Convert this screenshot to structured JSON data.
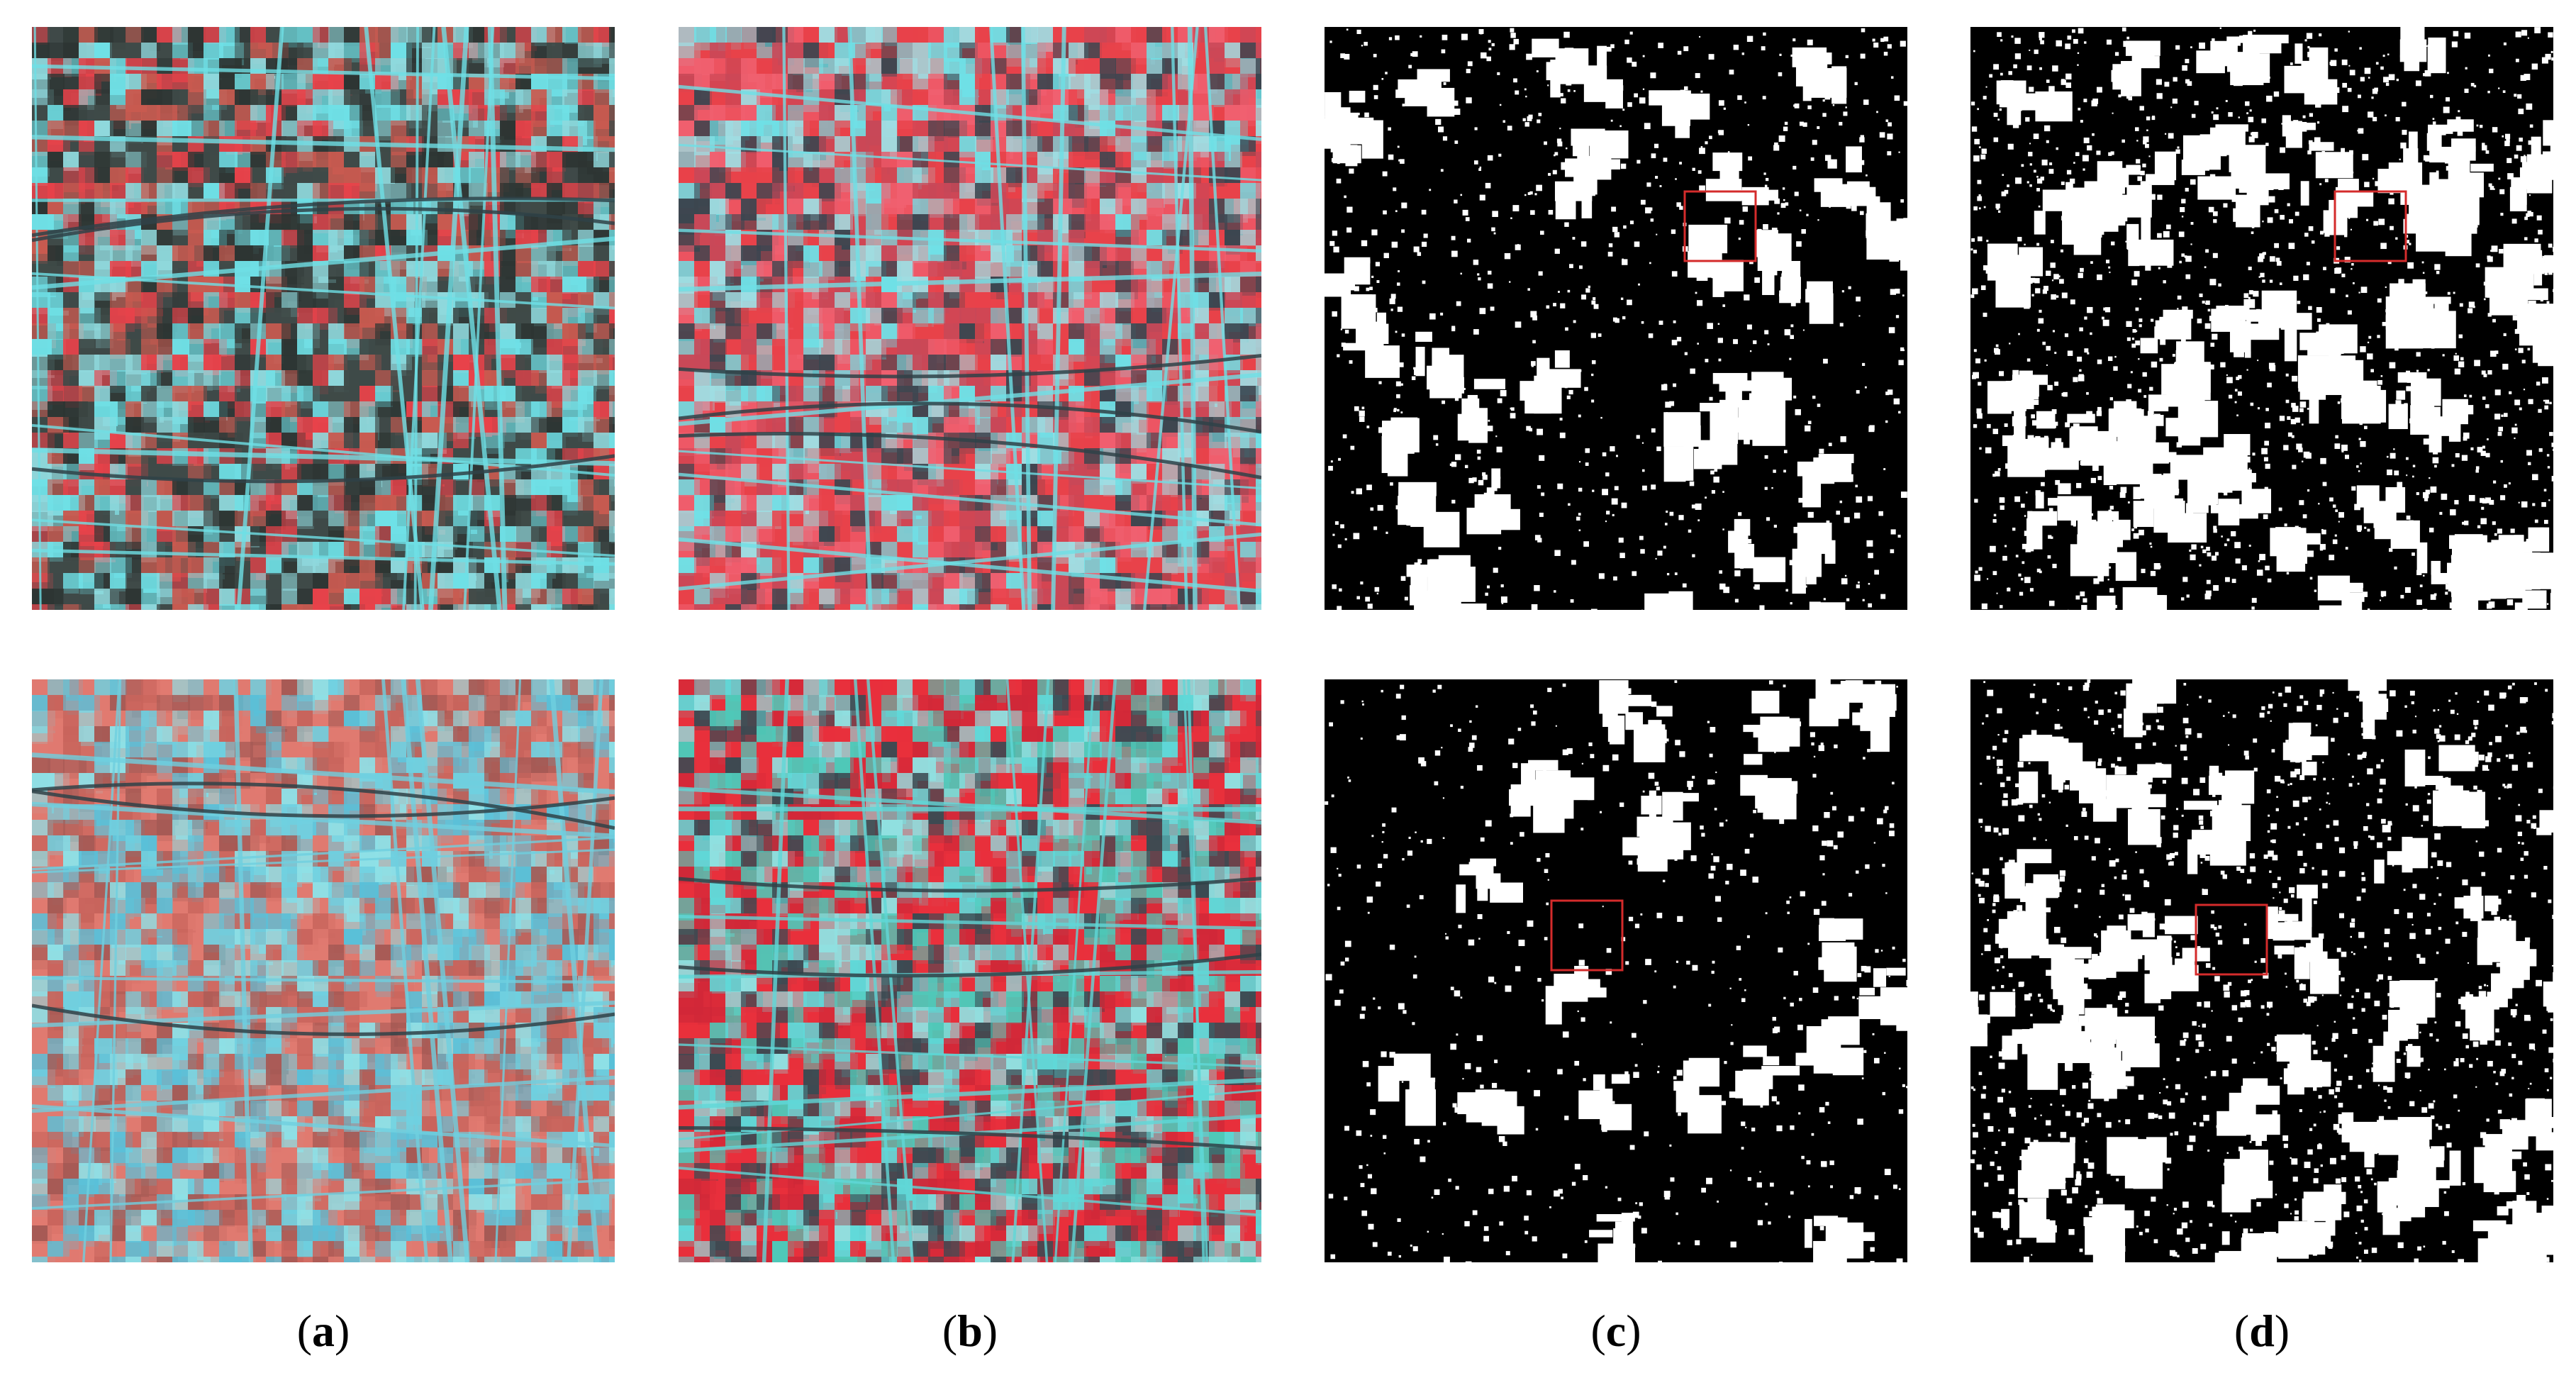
{
  "captions": [
    {
      "open": "(",
      "letter": "a",
      "close": ")"
    },
    {
      "open": "(",
      "letter": "b",
      "close": ")"
    },
    {
      "open": "(",
      "letter": "c",
      "close": ")"
    },
    {
      "open": "(",
      "letter": "d",
      "close": ")"
    }
  ],
  "colors": {
    "background": "#ffffff",
    "vegetation_red": "#e8424a",
    "urban_cyan": "#6fe0e6",
    "soil_dark": "#3f4a48",
    "change_white": "#ffffff",
    "nochange_black": "#000000",
    "highlight_box": "#d42b2b"
  },
  "panels": [
    {
      "name": "panel-a-top",
      "kind": "false-color-image",
      "palette": [
        "#3f4a48",
        "#6fe0e6",
        "#e8424a",
        "#c85a50",
        "#2d3533",
        "#8fd8dc"
      ]
    },
    {
      "name": "panel-b-top",
      "kind": "false-color-image",
      "palette": [
        "#e8424a",
        "#6fe0e6",
        "#c84858",
        "#9fdde2",
        "#3c4650",
        "#f06070"
      ]
    },
    {
      "name": "panel-c-top",
      "kind": "binary-change-map",
      "highlight": true
    },
    {
      "name": "panel-d-top",
      "kind": "binary-change-map",
      "highlight": true
    },
    {
      "name": "panel-a-bottom",
      "kind": "false-color-image",
      "palette": [
        "#e07a70",
        "#6fd0e0",
        "#c8645c",
        "#8ee0e6",
        "#a65a55",
        "#5ac0d8"
      ]
    },
    {
      "name": "panel-b-bottom",
      "kind": "false-color-image",
      "palette": [
        "#e8303c",
        "#60d8d8",
        "#3c4a52",
        "#90e0e0",
        "#d02838",
        "#4fc8b8"
      ]
    },
    {
      "name": "panel-c-bottom",
      "kind": "binary-change-map",
      "highlight": true
    },
    {
      "name": "panel-d-bottom",
      "kind": "binary-change-map",
      "highlight": true
    }
  ]
}
